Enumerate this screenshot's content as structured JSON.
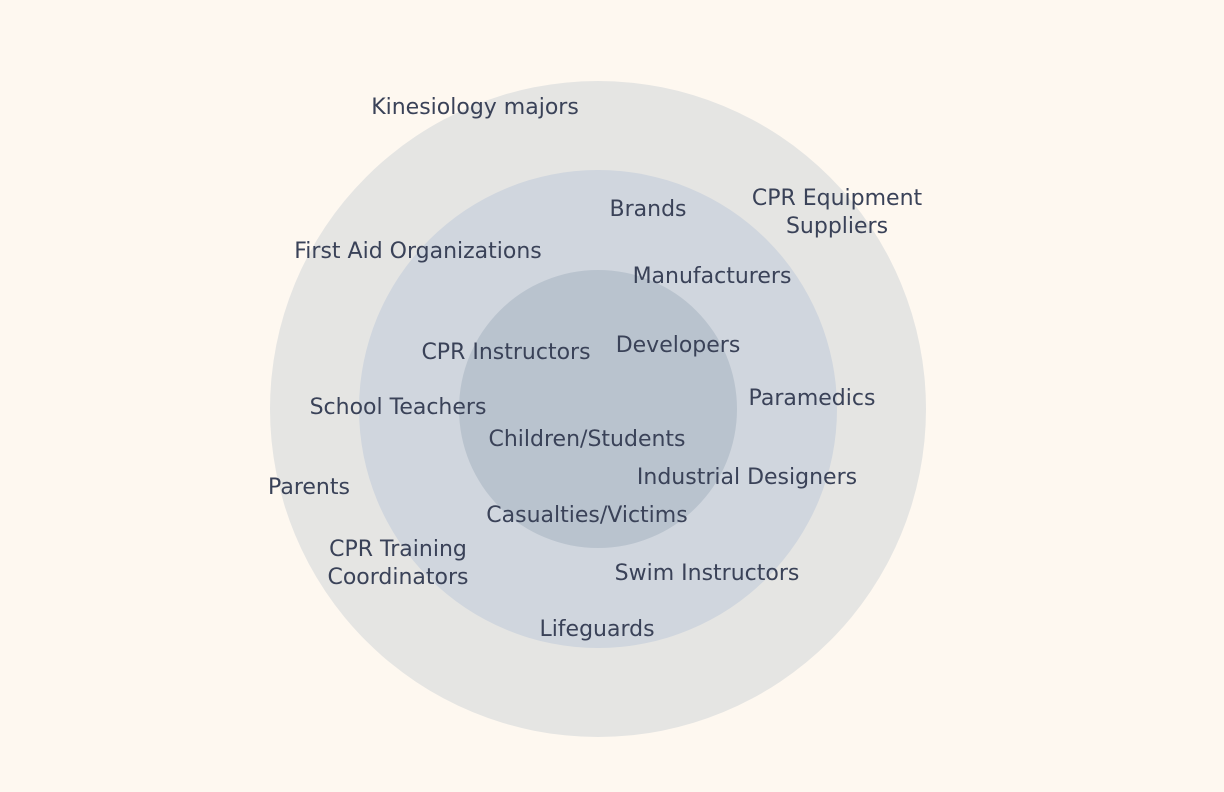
{
  "colors": {
    "background": "#fef8f0",
    "outer_ring": "#e5e5e3",
    "middle_ring": "#d0d6de",
    "inner_ring": "#b9c3ce",
    "text": "#3a4258"
  },
  "rings": [
    {
      "id": "ring-outer",
      "name": "outer-ring"
    },
    {
      "id": "ring-middle",
      "name": "middle-ring"
    },
    {
      "id": "ring-inner",
      "name": "inner-ring"
    }
  ],
  "labels": [
    {
      "text": "Kinesiology majors"
    },
    {
      "text": "Brands"
    },
    {
      "text": "CPR Equipment\nSuppliers"
    },
    {
      "text": "First Aid Organizations"
    },
    {
      "text": "Manufacturers"
    },
    {
      "text": "CPR Instructors"
    },
    {
      "text": "Developers"
    },
    {
      "text": "School Teachers"
    },
    {
      "text": "Paramedics"
    },
    {
      "text": "Children/Students"
    },
    {
      "text": "Parents"
    },
    {
      "text": "Industrial Designers"
    },
    {
      "text": "Casualties/Victims"
    },
    {
      "text": "CPR Training\nCoordinators"
    },
    {
      "text": "Swim Instructors"
    },
    {
      "text": "Lifeguards"
    }
  ]
}
